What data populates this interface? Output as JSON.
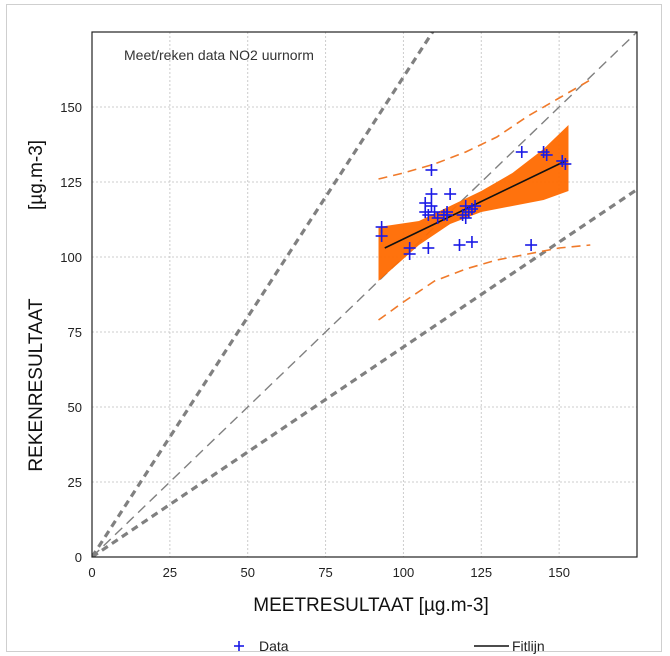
{
  "chart_data": {
    "type": "scatter",
    "title": "Meet/reken data NO2 uurnorm",
    "xlabel": "MEETRESULTAAT [µg.m-3]",
    "ylabel": "REKENRESULTAAT",
    "ylabel_unit": "[µg.m-3]",
    "xlim": [
      0,
      175
    ],
    "ylim": [
      0,
      175
    ],
    "x_ticks": [
      "0",
      "25",
      "50",
      "75",
      "100",
      "125",
      "150"
    ],
    "y_ticks": [
      "0",
      "25",
      "50",
      "75",
      "100",
      "125",
      "150"
    ],
    "grid": true,
    "legend": {
      "placement": "bottom",
      "data_label": "Data",
      "fit_label": "Fitlijn"
    },
    "reference_lines": {
      "identity_slope": 1,
      "upper_slope": 1.6,
      "lower_slope": 0.7
    },
    "series": [
      {
        "name": "Data",
        "points": [
          [
            93,
            110
          ],
          [
            93,
            107
          ],
          [
            102,
            103
          ],
          [
            102,
            101
          ],
          [
            107,
            118
          ],
          [
            108,
            103
          ],
          [
            107,
            115
          ],
          [
            108,
            114
          ],
          [
            109,
            121
          ],
          [
            109,
            129
          ],
          [
            109,
            117
          ],
          [
            110,
            115
          ],
          [
            111,
            113
          ],
          [
            113,
            114
          ],
          [
            114,
            115
          ],
          [
            115,
            121
          ],
          [
            114,
            114
          ],
          [
            118,
            104
          ],
          [
            119,
            114
          ],
          [
            120,
            113
          ],
          [
            120,
            117
          ],
          [
            121,
            115
          ],
          [
            122,
            105
          ],
          [
            122,
            116
          ],
          [
            123,
            117
          ],
          [
            138,
            135
          ],
          [
            141,
            104
          ],
          [
            145,
            135
          ],
          [
            146,
            134
          ],
          [
            151,
            132
          ],
          [
            152,
            131
          ]
        ]
      },
      {
        "name": "Fitlijn",
        "x": [
          94,
          152
        ],
        "y": [
          103,
          132
        ]
      }
    ],
    "confidence_band": {
      "x": [
        92,
        105,
        115,
        125,
        135,
        145,
        153
      ],
      "upper": [
        110,
        112,
        117,
        122,
        128,
        136,
        144
      ],
      "lower": [
        92,
        104,
        111,
        115,
        117,
        119,
        122
      ]
    },
    "prediction_band": {
      "x": [
        92,
        100,
        110,
        120,
        130,
        140,
        150,
        160
      ],
      "upper": [
        126,
        128,
        131,
        135,
        140,
        147,
        153,
        159
      ],
      "lower": [
        79,
        85,
        92,
        96,
        99,
        101,
        103,
        104
      ]
    },
    "colors": {
      "data": "#1a1ae6",
      "fit": "#111111",
      "band": "#ff6a00",
      "prediction": "#f07a2a",
      "reference": "#808080",
      "grid": "#cccccc"
    }
  }
}
